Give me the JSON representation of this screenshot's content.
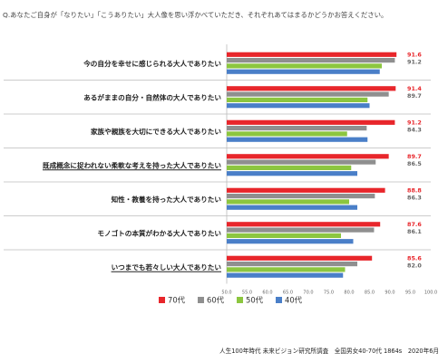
{
  "question": "Q.あなたご自身が「なりたい」「こうありたい」大人像を思い浮かべていただき、それぞれあてはまるかどうかお答えください。",
  "source": "人生100年時代 未来ビジョン研究所調査　全国男女40-70代 1864s　2020年6月",
  "chart_data": {
    "type": "bar",
    "orientation": "horizontal",
    "categories": [
      "今の自分を幸せに感じられる大人でありたい",
      "あるがままの自分・自然体の大人でありたい",
      "家族や親族を大切にできる大人でありたい",
      "既成概念に捉われない柔軟な考えを持った大人でありたい",
      "知性・教養を持った大人でありたい",
      "モノゴトの本質がわかる大人でありたい",
      "いつまでも若々しい大人でありたい"
    ],
    "highlighted_categories": [
      "既成概念に捉われない柔軟な考えを持った大人でありたい",
      "いつまでも若々しい大人でありたい"
    ],
    "series": [
      {
        "name": "70代",
        "color": "#e8262b",
        "values": [
          91.6,
          91.4,
          91.2,
          89.7,
          88.8,
          87.6,
          85.6
        ]
      },
      {
        "name": "60代",
        "color": "#8f8f8f",
        "values": [
          91.2,
          89.7,
          84.3,
          86.5,
          86.3,
          86.1,
          82.0
        ]
      },
      {
        "name": "50代",
        "color": "#8cc63f",
        "values": [
          88.0,
          84.5,
          79.5,
          80.5,
          80.0,
          78.0,
          79.0
        ]
      },
      {
        "name": "40代",
        "color": "#4a7fc8",
        "values": [
          87.5,
          85.0,
          84.5,
          82.0,
          82.0,
          81.0,
          78.5
        ]
      }
    ],
    "value_labels": [
      {
        "series": "70代",
        "values": [
          "91.6",
          "91.4",
          "91.2",
          "89.7",
          "88.8",
          "87.6",
          "85.6"
        ]
      },
      {
        "series": "60代",
        "values": [
          "91.2",
          "89.7",
          "84.3",
          "86.5",
          "86.3",
          "86.1",
          "82.0"
        ]
      }
    ],
    "x_ticks": [
      "50.0",
      "55.0",
      "60.0",
      "65.0",
      "70.0",
      "75.0",
      "80.0",
      "85.0",
      "90.0",
      "95.0",
      "100.0"
    ],
    "xlim": [
      50,
      100
    ],
    "legend_position": "bottom"
  }
}
